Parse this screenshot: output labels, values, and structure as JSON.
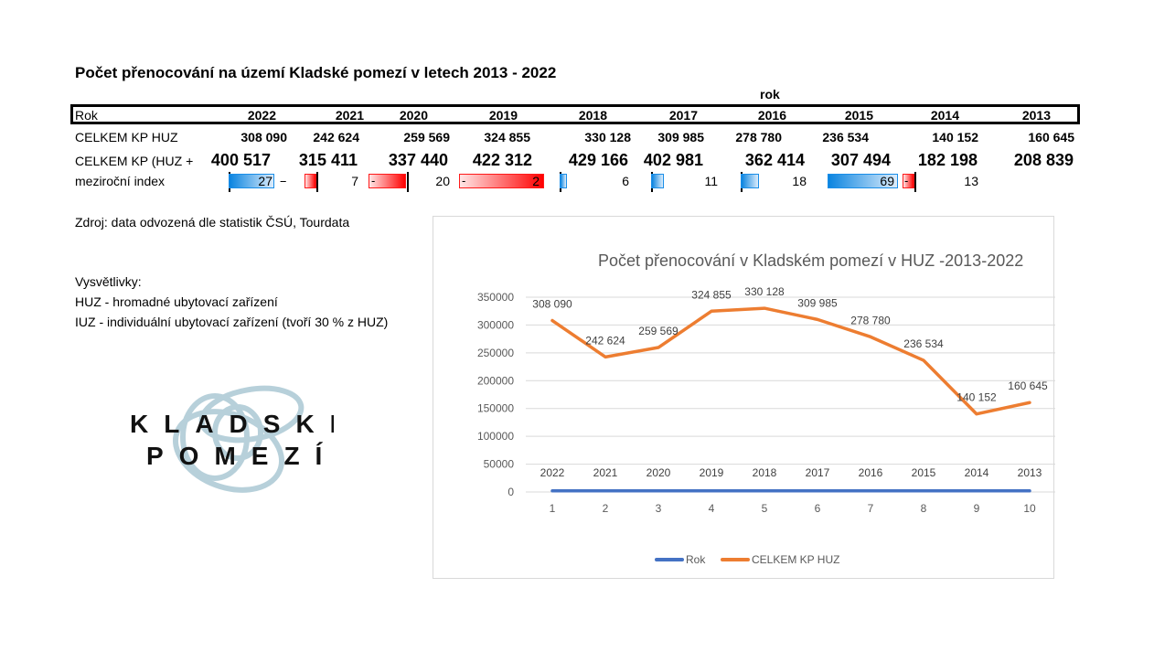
{
  "title": "Počet přenocování na území Kladské pomezí v letech 2013 - 2022",
  "rok_header": "rok",
  "table": {
    "row_labels": [
      "Rok",
      "CELKEM KP HUZ",
      "CELKEM KP (HUZ +",
      "meziroční index"
    ],
    "years": [
      "2022",
      "2021",
      "2020",
      "2019",
      "2018",
      "2017",
      "2016",
      "2015",
      "2014",
      "2013"
    ],
    "huz": [
      "308 090",
      "242 624",
      "259 569",
      "324 855",
      "330 128",
      "309 985",
      "278 780",
      "236 534",
      "140 152",
      "160 645"
    ],
    "huz_iuz": [
      "400 517",
      "315 411",
      "337 440",
      "422 312",
      "429 166",
      "402 981",
      "362 414",
      "307 494",
      "182 198",
      "208 839"
    ],
    "index": [
      27,
      -7,
      -20,
      -2,
      6,
      11,
      18,
      69,
      -13
    ],
    "index_labels": [
      "27",
      "7",
      "20",
      "2",
      "6",
      "11",
      "18",
      "69",
      "13"
    ],
    "minus": "-"
  },
  "source": "Zdroj: data odvozená dle statistik ČSÚ, Tourdata",
  "legend_title": "Vysvětlivky:",
  "legend_lines": [
    "HUZ - hromadné ubytovací zařízení",
    "IUZ - individuální ubytovací zařízení (tvoří 30 % z HUZ)"
  ],
  "logo": {
    "line1": "KLADSKÉ",
    "line2": "POMEZÍ",
    "color": "#b7d0da"
  },
  "chart_data": {
    "type": "line",
    "title": "Počet přenocování v Kladském pomezí v HUZ -2013-2022",
    "x": [
      1,
      2,
      3,
      4,
      5,
      6,
      7,
      8,
      9,
      10
    ],
    "ylim": [
      0,
      350000
    ],
    "yticks": [
      "0",
      "50000",
      "100000",
      "150000",
      "200000",
      "250000",
      "300000",
      "350000"
    ],
    "ytick_values": [
      0,
      50000,
      100000,
      150000,
      200000,
      250000,
      300000,
      350000
    ],
    "grid": true,
    "legend_position": "bottom",
    "series": [
      {
        "name": "Rok",
        "color": "#4472c4",
        "values": [
          2022,
          2021,
          2020,
          2019,
          2018,
          2017,
          2016,
          2015,
          2014,
          2013
        ],
        "labels": [
          "2022",
          "2021",
          "2020",
          "2019",
          "2018",
          "2017",
          "2016",
          "2015",
          "2014",
          "2013"
        ]
      },
      {
        "name": "CELKEM KP HUZ",
        "color": "#ed7d31",
        "values": [
          308090,
          242624,
          259569,
          324855,
          330128,
          309985,
          278780,
          236534,
          140152,
          160645
        ],
        "labels": [
          "308 090",
          "242 624",
          "259 569",
          "324 855",
          "330 128",
          "309 985",
          "278 780",
          "236 534",
          "140 152",
          "160 645"
        ]
      }
    ]
  }
}
